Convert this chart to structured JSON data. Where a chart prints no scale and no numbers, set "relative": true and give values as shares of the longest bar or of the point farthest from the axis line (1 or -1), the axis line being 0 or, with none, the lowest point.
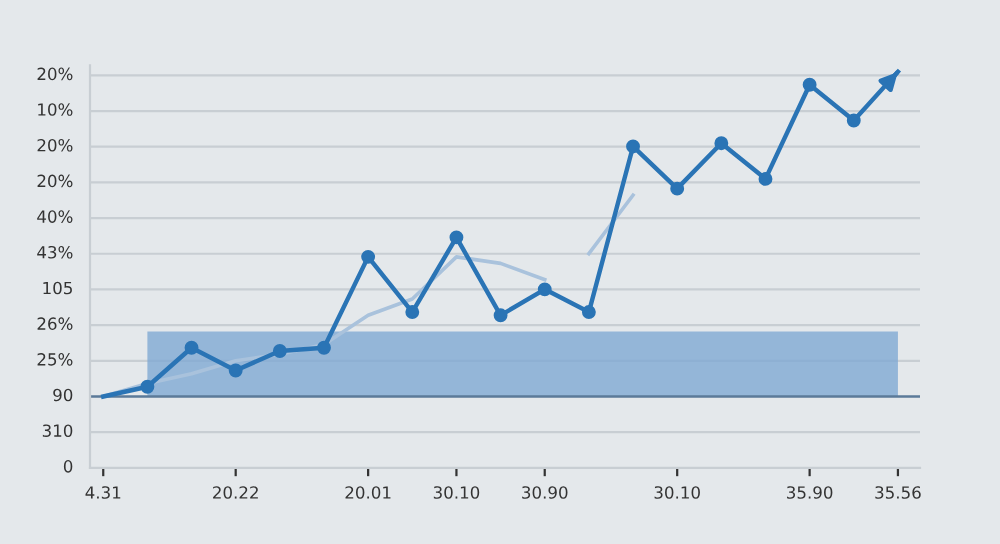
{
  "chart_data": {
    "type": "line",
    "relative": true,
    "categories": [
      "4.31",
      null,
      null,
      "20.22",
      null,
      null,
      "20.01",
      null,
      "30.10",
      null,
      "30.90",
      null,
      null,
      "30.10",
      null,
      null,
      "35.90",
      null,
      "35.56"
    ],
    "annotations": [
      "0",
      "310",
      "90",
      "25%",
      "26%",
      "105",
      "43%",
      "40%",
      "20%",
      "20%",
      "10%",
      "20%"
    ],
    "grid": "y",
    "series": [
      {
        "type": "area",
        "color": "#7fa9d3",
        "values": [
          null,
          0.2,
          0.2,
          0.2,
          0.2,
          0.2,
          0.2,
          0.2,
          0.2,
          0.2,
          0.2,
          0.2,
          0.2,
          0.2,
          0.2,
          0.2,
          0.2,
          0.2,
          0.2
        ]
      },
      {
        "type": "line",
        "color": "#a9c2dc",
        "marker": "none",
        "values": [
          0,
          0.04,
          0.07,
          0.11,
          0.13,
          0.16,
          0.25,
          0.3,
          0.43,
          0.41,
          0.36,
          null,
          null,
          null,
          null,
          null,
          null,
          null,
          null
        ]
      },
      {
        "type": "line",
        "color": "#a9c2dc",
        "marker": "none",
        "values": [
          null,
          null,
          null,
          null,
          null,
          null,
          null,
          null,
          null,
          null,
          null,
          0.44,
          0.62,
          null,
          null,
          null,
          null,
          null,
          null
        ]
      },
      {
        "color": "#2a74b5",
        "marker": "circle",
        "values": [
          0,
          0.03,
          0.15,
          0.08,
          0.14,
          0.15,
          0.43,
          0.26,
          0.49,
          0.25,
          0.33,
          0.26,
          0.77,
          0.64,
          0.78,
          0.67,
          0.96,
          0.85,
          1
        ]
      }
    ]
  }
}
